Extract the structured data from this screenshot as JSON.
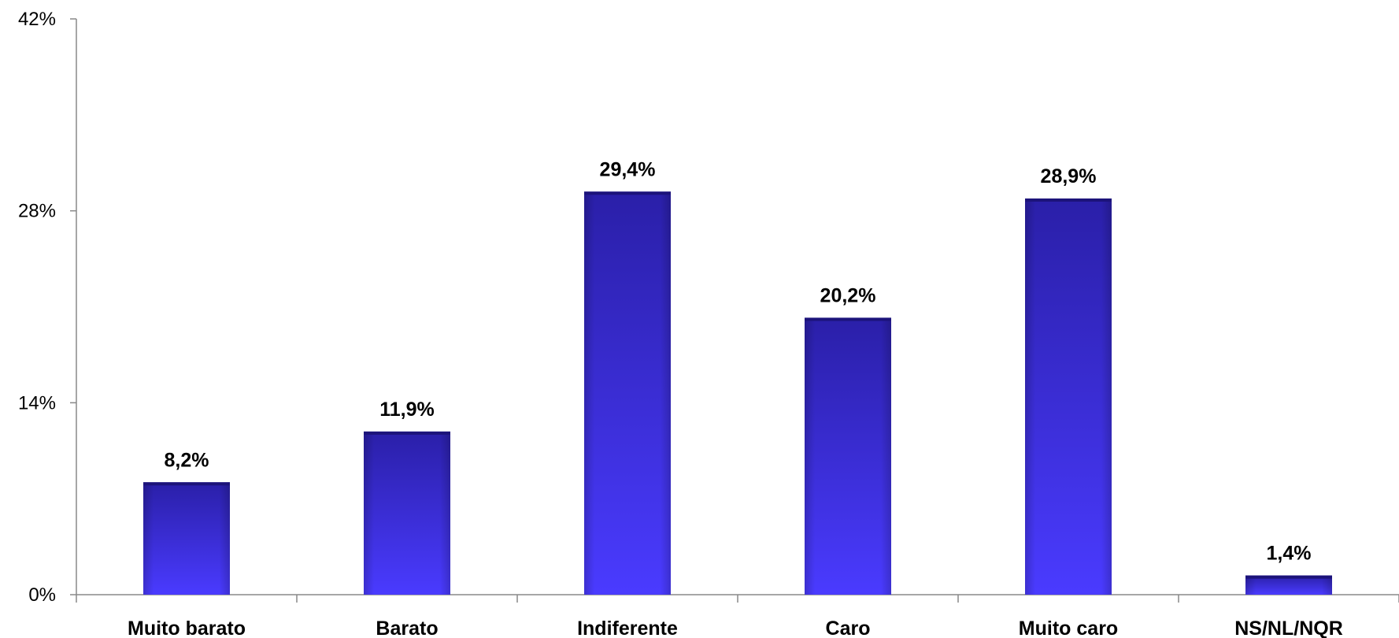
{
  "chart_data": {
    "type": "bar",
    "categories": [
      "Muito barato",
      "Barato",
      "Indiferente",
      "Caro",
      "Muito caro",
      "NS/NL/NQR"
    ],
    "values": [
      8.2,
      11.9,
      29.4,
      20.2,
      28.9,
      1.4
    ],
    "data_labels": [
      "8,2%",
      "11,9%",
      "29,4%",
      "20,2%",
      "28,9%",
      "1,4%"
    ],
    "y_ticks": [
      0,
      14,
      28,
      42
    ],
    "y_tick_labels": [
      "0%",
      "14%",
      "28%",
      "42%"
    ],
    "ylim": [
      0,
      42
    ],
    "title": "",
    "xlabel": "",
    "ylabel": "",
    "grid": false,
    "legend": "none",
    "bar_color": "#3a2de0"
  }
}
